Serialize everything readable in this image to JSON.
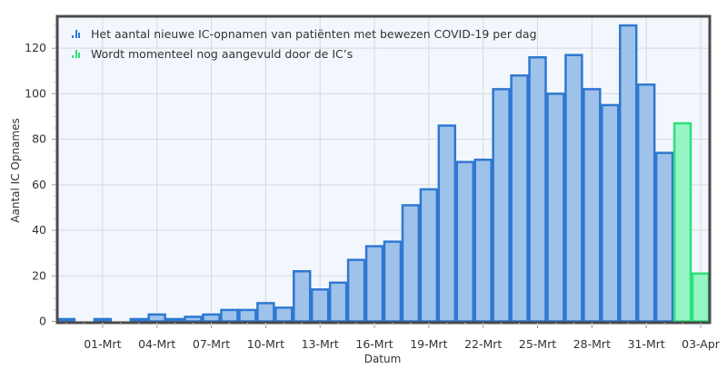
{
  "chart_data": {
    "type": "bar",
    "title": "",
    "xlabel": "Datum",
    "ylabel": "Aantal IC Opnames",
    "ylim": [
      0,
      133.8
    ],
    "yticks": [
      0,
      20,
      40,
      60,
      80,
      100,
      120
    ],
    "grid": true,
    "legend_position": "top-left inside",
    "x_tick_labels": [
      "01-Mrt",
      "04-Mrt",
      "07-Mrt",
      "10-Mrt",
      "13-Mrt",
      "16-Mrt",
      "19-Mrt",
      "22-Mrt",
      "25-Mrt",
      "28-Mrt",
      "31-Mrt",
      "03-Apr"
    ],
    "categories": [
      "28-Feb",
      "29-Feb",
      "01-Mrt",
      "02-Mrt",
      "03-Mrt",
      "04-Mrt",
      "05-Mrt",
      "06-Mrt",
      "07-Mrt",
      "08-Mrt",
      "09-Mrt",
      "10-Mrt",
      "11-Mrt",
      "12-Mrt",
      "13-Mrt",
      "14-Mrt",
      "15-Mrt",
      "16-Mrt",
      "17-Mrt",
      "18-Mrt",
      "19-Mrt",
      "20-Mrt",
      "21-Mrt",
      "22-Mrt",
      "23-Mrt",
      "24-Mrt",
      "25-Mrt",
      "26-Mrt",
      "27-Mrt",
      "28-Mrt",
      "29-Mrt",
      "30-Mrt",
      "31-Mrt",
      "01-Apr",
      "02-Apr",
      "03-Apr"
    ],
    "series": [
      {
        "name": "Het aantal nieuwe IC-opnamen van patiënten met bewezen COVID-19 per dag",
        "color": "#2f78d1",
        "fill": "#9fc2ea",
        "values": [
          1,
          0,
          1,
          0,
          1,
          3,
          1,
          2,
          3,
          5,
          5,
          8,
          6,
          22,
          14,
          17,
          27,
          33,
          35,
          51,
          58,
          86,
          70,
          71,
          102,
          108,
          116,
          100,
          117,
          102,
          95,
          130,
          104,
          74,
          null,
          null
        ]
      },
      {
        "name": "Wordt momenteel nog aangevuld door de IC's",
        "color": "#2fe07a",
        "fill": "#96f5c4",
        "values": [
          null,
          null,
          null,
          null,
          null,
          null,
          null,
          null,
          null,
          null,
          null,
          null,
          null,
          null,
          null,
          null,
          null,
          null,
          null,
          null,
          null,
          null,
          null,
          null,
          null,
          null,
          null,
          null,
          null,
          null,
          null,
          null,
          null,
          null,
          87,
          21
        ]
      }
    ]
  },
  "legend": {
    "items": [
      {
        "label": "Het aantal nieuwe IC-opnamen van patiënten met bewezen COVID-19 per dag",
        "icon": "bar-chart-icon",
        "color": "#2f78d1"
      },
      {
        "label": "Wordt momenteel nog aangevuld door de IC’s",
        "icon": "bar-chart-icon",
        "color": "#2fe07a"
      }
    ]
  },
  "colors": {
    "plot_background": "#f2f7fd",
    "grid": "#d6d9dd",
    "frame": "#4a4a4a"
  }
}
